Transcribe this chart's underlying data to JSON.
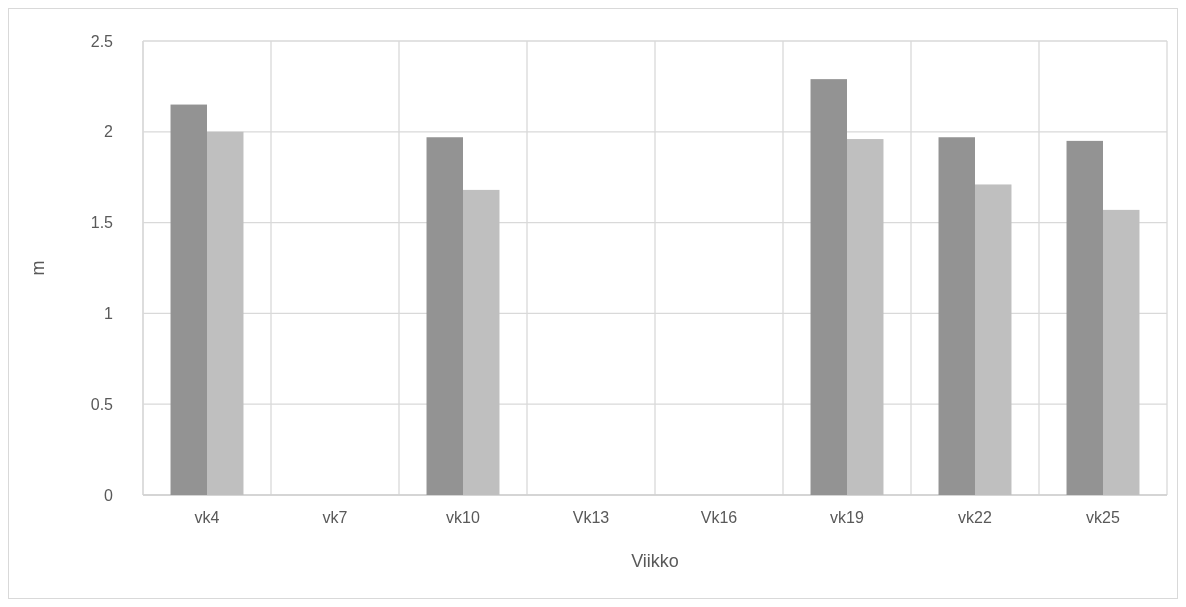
{
  "chart_data": {
    "type": "bar",
    "xlabel": "Viikko",
    "ylabel": "m",
    "categories": [
      "vk4",
      "vk7",
      "vk10",
      "Vk13",
      "Vk16",
      "vk19",
      "vk22",
      "vk25"
    ],
    "series": [
      {
        "color": "#939393",
        "values": [
          2.15,
          null,
          1.97,
          null,
          null,
          2.29,
          1.97,
          1.95
        ]
      },
      {
        "color": "#bfbfbf",
        "values": [
          2.0,
          null,
          1.68,
          null,
          null,
          1.96,
          1.71,
          1.57
        ]
      }
    ],
    "ylim": [
      0,
      2.5
    ],
    "yticks": [
      0,
      0.5,
      1,
      1.5,
      2,
      2.5
    ],
    "grid": true
  }
}
